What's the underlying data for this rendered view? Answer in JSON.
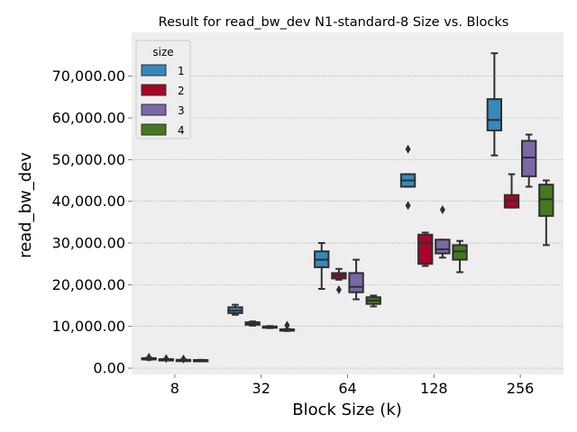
{
  "chart_data": {
    "type": "boxplot",
    "title": "Result for read_bw_dev N1-standard-8 Size vs. Blocks",
    "xlabel": "Block Size (k)",
    "ylabel": "read_bw_dev",
    "categories": [
      "8",
      "32",
      "64",
      "128",
      "256"
    ],
    "y_ticks": [
      0,
      10000,
      20000,
      30000,
      40000,
      50000,
      60000,
      70000
    ],
    "y_tick_labels": [
      "0.00",
      "10,000.00",
      "20,000.00",
      "30,000.00",
      "40,000.00",
      "50,000.00",
      "60,000.00",
      "70,000.00"
    ],
    "ylim": [
      -1500,
      80500
    ],
    "grid": true,
    "legend": {
      "title": "size",
      "position": "top-left"
    },
    "series": [
      {
        "name": "1",
        "color": "#348ABD",
        "boxes": [
          {
            "min": 2000,
            "q1": 2100,
            "median": 2200,
            "q3": 2400,
            "max": 2500,
            "outliers": [
              2600
            ]
          },
          {
            "min": 12800,
            "q1": 13200,
            "median": 13800,
            "q3": 14600,
            "max": 15200,
            "outliers": []
          },
          {
            "min": 19000,
            "q1": 24200,
            "median": 26000,
            "q3": 28000,
            "max": 30000,
            "outliers": []
          },
          {
            "min": 43500,
            "q1": 43500,
            "median": 45000,
            "q3": 46500,
            "max": 46500,
            "outliers": [
              52500,
              39000
            ]
          },
          {
            "min": 51000,
            "q1": 57000,
            "median": 59500,
            "q3": 64500,
            "max": 75500,
            "outliers": []
          }
        ]
      },
      {
        "name": "2",
        "color": "#A60628",
        "boxes": [
          {
            "min": 2000,
            "q1": 2050,
            "median": 2100,
            "q3": 2150,
            "max": 2200,
            "outliers": [
              2300
            ]
          },
          {
            "min": 10200,
            "q1": 10400,
            "median": 10800,
            "q3": 11000,
            "max": 11200,
            "outliers": []
          },
          {
            "min": 21200,
            "q1": 21500,
            "median": 22200,
            "q3": 22800,
            "max": 23800,
            "outliers": [
              18800
            ]
          },
          {
            "min": 24500,
            "q1": 25000,
            "median": 30000,
            "q3": 32000,
            "max": 32500,
            "outliers": []
          },
          {
            "min": 38500,
            "q1": 38500,
            "median": 40200,
            "q3": 41500,
            "max": 46500,
            "outliers": []
          }
        ]
      },
      {
        "name": "3",
        "color": "#7A68A6",
        "boxes": [
          {
            "min": 1800,
            "q1": 1900,
            "median": 1950,
            "q3": 2000,
            "max": 2100,
            "outliers": [
              2200
            ]
          },
          {
            "min": 9600,
            "q1": 9700,
            "median": 9800,
            "q3": 10000,
            "max": 10100,
            "outliers": []
          },
          {
            "min": 16500,
            "q1": 18200,
            "median": 19500,
            "q3": 22800,
            "max": 26000,
            "outliers": []
          },
          {
            "min": 26500,
            "q1": 27500,
            "median": 28500,
            "q3": 30800,
            "max": 30800,
            "outliers": [
              38000
            ]
          },
          {
            "min": 43500,
            "q1": 46000,
            "median": 50500,
            "q3": 54500,
            "max": 56000,
            "outliers": []
          }
        ]
      },
      {
        "name": "4",
        "color": "#467821",
        "boxes": [
          {
            "min": 1800,
            "q1": 1850,
            "median": 1900,
            "q3": 1950,
            "max": 2000,
            "outliers": []
          },
          {
            "min": 8900,
            "q1": 9000,
            "median": 9100,
            "q3": 9300,
            "max": 9400,
            "outliers": [
              10300
            ]
          },
          {
            "min": 14800,
            "q1": 15400,
            "median": 16200,
            "q3": 17000,
            "max": 17400,
            "outliers": []
          },
          {
            "min": 23000,
            "q1": 26000,
            "median": 28000,
            "q3": 29500,
            "max": 30500,
            "outliers": []
          },
          {
            "min": 29500,
            "q1": 36500,
            "median": 40500,
            "q3": 44000,
            "max": 45000,
            "outliers": []
          }
        ]
      }
    ]
  }
}
